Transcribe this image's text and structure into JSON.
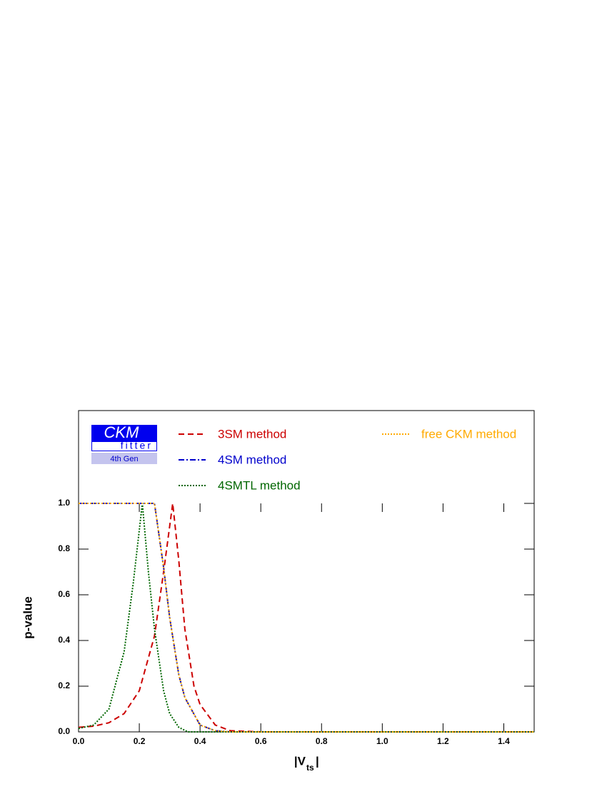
{
  "chart_data": {
    "type": "line",
    "xlabel": {
      "main": "|V",
      "sub": "ts",
      "end": "|"
    },
    "ylabel": "p-value",
    "xlim": [
      0,
      1.5
    ],
    "ylim": [
      0,
      1.4
    ],
    "xticks": [
      {
        "value": 0,
        "label": "0.0"
      },
      0.2,
      0.4,
      0.6,
      0.8,
      {
        "value": 1,
        "label": "1.0"
      },
      1.2,
      1.4
    ],
    "yticks": [
      {
        "value": 0,
        "label": "0.0"
      },
      0.2,
      0.4,
      0.6,
      0.8,
      {
        "value": 1,
        "label": "1.0"
      }
    ],
    "series": [
      {
        "name": "3SM method",
        "color": "#cc0000",
        "dash": "8,5",
        "x": [
          0,
          0.05,
          0.1,
          0.15,
          0.2,
          0.25,
          0.28,
          0.31,
          0.33,
          0.35,
          0.38,
          0.4,
          0.45,
          0.5,
          0.6,
          1.5
        ],
        "values": [
          0.02,
          0.025,
          0.04,
          0.08,
          0.18,
          0.42,
          0.7,
          1.0,
          0.75,
          0.45,
          0.2,
          0.12,
          0.03,
          0.005,
          0,
          0
        ]
      },
      {
        "name": "4SM method",
        "color": "#0000cc",
        "dash": "8,3,2,3",
        "x": [
          0,
          0.25,
          0.28,
          0.3,
          0.33,
          0.35,
          0.4,
          0.45,
          0.5,
          1.5
        ],
        "values": [
          1.0,
          1.0,
          0.72,
          0.5,
          0.25,
          0.15,
          0.03,
          0.005,
          0,
          0
        ]
      },
      {
        "name": "4SMTL method",
        "color": "#006600",
        "dash": "2,2",
        "x": [
          0,
          0.05,
          0.1,
          0.15,
          0.18,
          0.21,
          0.23,
          0.25,
          0.28,
          0.3,
          0.33,
          0.36,
          1.5
        ],
        "values": [
          0.015,
          0.03,
          0.1,
          0.35,
          0.65,
          1.0,
          0.7,
          0.45,
          0.18,
          0.08,
          0.02,
          0,
          0
        ]
      },
      {
        "name": "free CKM method",
        "color": "#ffaa00",
        "dash": "2,2",
        "x": [
          0,
          0.25,
          0.28,
          0.3,
          0.33,
          0.35,
          0.4,
          0.45,
          0.5,
          1.5
        ],
        "values": [
          1.0,
          1.0,
          0.72,
          0.5,
          0.25,
          0.15,
          0.03,
          0.005,
          0,
          0
        ]
      }
    ]
  },
  "logo": {
    "title": "CKM",
    "subtitle": "fitter",
    "edition": "4th Gen"
  }
}
